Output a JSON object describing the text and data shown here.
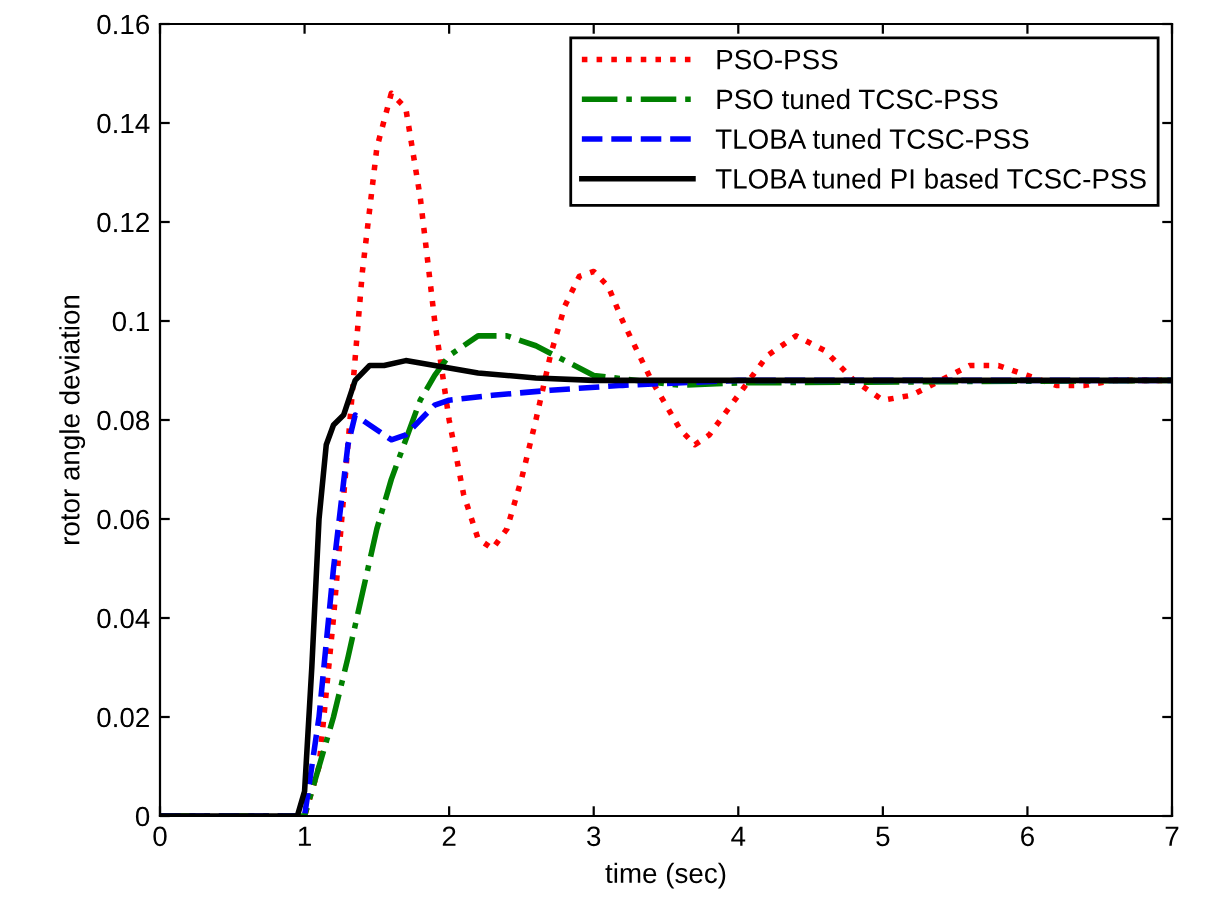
{
  "chart_data": {
    "type": "line",
    "xlabel": "time (sec)",
    "ylabel": "rotor angle deviation",
    "xlim": [
      0,
      7
    ],
    "xticks": [
      0,
      1,
      2,
      3,
      4,
      5,
      6,
      7
    ],
    "ylim": [
      0,
      0.16
    ],
    "yticks": [
      0,
      0.02,
      0.04,
      0.06,
      0.08,
      0.1,
      0.12,
      0.14,
      0.16
    ],
    "grid": false,
    "legend": "top right",
    "marker": "none",
    "series": [
      {
        "name": "PSO-PSS",
        "color": "#ff0000",
        "line_style": "dotted",
        "x": [
          0,
          1.0,
          1.1,
          1.2,
          1.3,
          1.4,
          1.5,
          1.6,
          1.7,
          1.8,
          1.9,
          2.0,
          2.1,
          2.2,
          2.3,
          2.4,
          2.5,
          2.6,
          2.7,
          2.8,
          2.9,
          3.0,
          3.1,
          3.2,
          3.4,
          3.6,
          3.7,
          3.8,
          4.0,
          4.2,
          4.4,
          4.6,
          4.8,
          5.0,
          5.2,
          5.4,
          5.6,
          5.8,
          6.0,
          6.2,
          6.4,
          6.6,
          7.0
        ],
        "values": [
          0,
          0,
          0.01,
          0.04,
          0.075,
          0.11,
          0.135,
          0.146,
          0.143,
          0.125,
          0.1,
          0.08,
          0.065,
          0.056,
          0.054,
          0.058,
          0.068,
          0.08,
          0.093,
          0.103,
          0.109,
          0.11,
          0.107,
          0.1,
          0.088,
          0.078,
          0.075,
          0.077,
          0.085,
          0.093,
          0.097,
          0.094,
          0.088,
          0.084,
          0.085,
          0.088,
          0.091,
          0.091,
          0.089,
          0.087,
          0.087,
          0.088,
          0.088
        ]
      },
      {
        "name": "PSO tuned TCSC-PSS",
        "color": "#008000",
        "line_style": "dashdot",
        "x": [
          0,
          1.0,
          1.1,
          1.2,
          1.3,
          1.4,
          1.5,
          1.6,
          1.7,
          1.8,
          1.9,
          2.0,
          2.1,
          2.2,
          2.3,
          2.4,
          2.6,
          2.8,
          3.0,
          3.3,
          3.6,
          4.0,
          7.0
        ],
        "values": [
          0,
          0,
          0.01,
          0.02,
          0.032,
          0.045,
          0.058,
          0.068,
          0.076,
          0.084,
          0.089,
          0.093,
          0.095,
          0.097,
          0.097,
          0.097,
          0.095,
          0.092,
          0.089,
          0.088,
          0.087,
          0.0875,
          0.088
        ]
      },
      {
        "name": "TLOBA tuned TCSC-PSS",
        "color": "#0000ff",
        "line_style": "dashed",
        "x": [
          0,
          1.0,
          1.1,
          1.2,
          1.3,
          1.35,
          1.45,
          1.6,
          1.7,
          1.8,
          1.9,
          2.0,
          2.3,
          2.7,
          3.2,
          4.0,
          7.0
        ],
        "values": [
          0,
          0,
          0.02,
          0.05,
          0.075,
          0.081,
          0.079,
          0.076,
          0.077,
          0.08,
          0.083,
          0.084,
          0.085,
          0.086,
          0.087,
          0.088,
          0.088
        ]
      },
      {
        "name": "TLOBA tuned PI based TCSC-PSS",
        "color": "#000000",
        "line_style": "solid",
        "x": [
          0,
          0.95,
          1.0,
          1.05,
          1.1,
          1.15,
          1.2,
          1.27,
          1.35,
          1.45,
          1.55,
          1.7,
          1.9,
          2.2,
          2.6,
          3.0,
          7.0
        ],
        "values": [
          0,
          0,
          0.005,
          0.03,
          0.06,
          0.075,
          0.079,
          0.081,
          0.088,
          0.091,
          0.091,
          0.092,
          0.091,
          0.0895,
          0.0885,
          0.088,
          0.088
        ]
      }
    ]
  }
}
